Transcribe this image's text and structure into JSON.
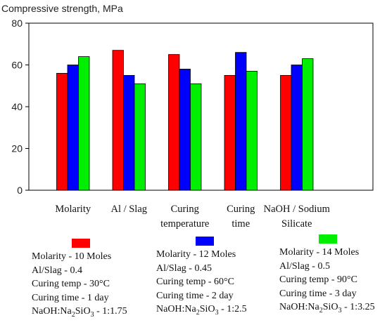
{
  "chart_data": {
    "type": "bar",
    "ylabel": "Compressive strength, MPa",
    "ylim": [
      0,
      80
    ],
    "yticks": [
      0,
      20,
      40,
      60,
      80
    ],
    "grid": false,
    "categories": [
      [
        "Molarity"
      ],
      [
        "Al / Slag"
      ],
      [
        "Curing",
        "temperature"
      ],
      [
        "Curing",
        "time"
      ],
      [
        "NaOH / Sodium",
        "Silicate"
      ]
    ],
    "series": [
      {
        "color": "#ff0000",
        "values": [
          56,
          67,
          65,
          55,
          55
        ]
      },
      {
        "color": "#0000ff",
        "values": [
          60,
          55,
          58,
          66,
          60
        ]
      },
      {
        "color": "#00ee00",
        "values": [
          64,
          51,
          51,
          57,
          63
        ]
      }
    ]
  },
  "legend": [
    {
      "color": "#ff0000",
      "lines": [
        "Molarity - 10 Moles",
        "Al/Slag - 0.4",
        "Curing temp - 30°C",
        "Curing time - 1 day"
      ],
      "ratio_prefix": "NaOH:Na",
      "ratio_sub1": "2",
      "ratio_mid": "SiO",
      "ratio_sub2": "3",
      "ratio_suffix": " - 1:1.75"
    },
    {
      "color": "#0000ff",
      "lines": [
        "Molarity - 12 Moles",
        "Al/Slag - 0.45",
        "Curing temp - 60°C",
        "Curing time - 2 day"
      ],
      "ratio_prefix": "NaOH:Na",
      "ratio_sub1": "2",
      "ratio_mid": "SiO",
      "ratio_sub2": "3",
      "ratio_suffix": " - 1:2.5"
    },
    {
      "color": "#00ee00",
      "lines": [
        "Molarity - 14 Moles",
        "Al/Slag - 0.5",
        "Curing temp - 90°C",
        "Curing time - 3 day"
      ],
      "ratio_prefix": "NaOH:Na",
      "ratio_sub1": "2",
      "ratio_mid": "SiO",
      "ratio_sub2": "3",
      "ratio_suffix": " - 1:3.25"
    }
  ]
}
